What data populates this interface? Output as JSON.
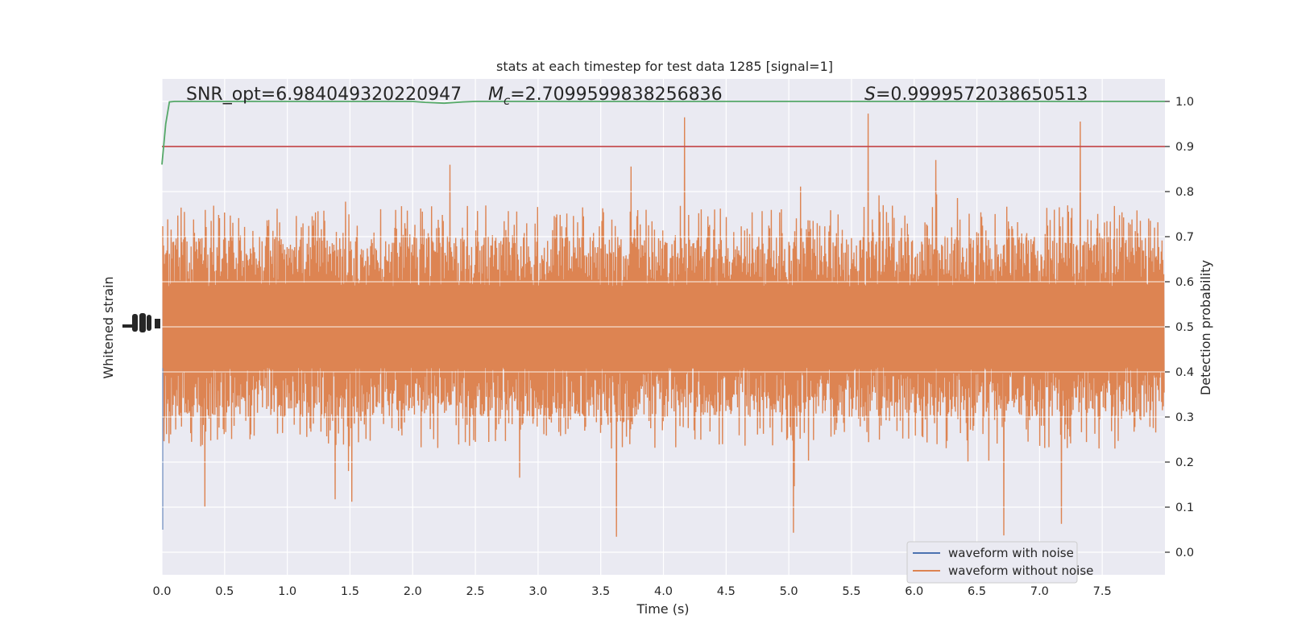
{
  "chart_data": {
    "type": "line",
    "title": "stats at each timestep for test data 1285 [signal=1]",
    "xlabel": "Time (s)",
    "ylabel_left": "Whitened strain",
    "ylabel_right": "Detection probability",
    "xlim": [
      0.0,
      8.0
    ],
    "y_right_lim": [
      -0.05,
      1.05
    ],
    "x_ticks": [
      "0.0",
      "0.5",
      "1.0",
      "1.5",
      "2.0",
      "2.5",
      "3.0",
      "3.5",
      "4.0",
      "4.5",
      "5.0",
      "5.5",
      "6.0",
      "6.5",
      "7.0",
      "7.5"
    ],
    "y_right_ticks": [
      "0.0",
      "0.1",
      "0.2",
      "0.3",
      "0.4",
      "0.5",
      "0.6",
      "0.7",
      "0.8",
      "0.9",
      "1.0"
    ],
    "grid": true,
    "legend_position": "lower-right",
    "annotations": {
      "snr": "SNR_opt=6.984049320220947",
      "mc_symbol": "M",
      "mc_sub": "c",
      "mc_value": "=2.7099599838256836",
      "s_symbol": "S",
      "s_value": "=0.9999572038650513"
    },
    "series": [
      {
        "name": "waveform with noise",
        "color": "#4c72b0"
      },
      {
        "name": "waveform without noise",
        "color": "#dd8452"
      },
      {
        "color": "#55a868",
        "x": [
          0.0,
          0.03,
          0.06,
          0.1,
          0.3,
          2.0,
          2.1,
          2.25,
          2.4,
          2.5,
          3.0,
          8.0
        ],
        "y": [
          0.86,
          0.95,
          0.999,
          1.0,
          1.0,
          1.0,
          0.998,
          0.996,
          0.999,
          1.0,
          1.0,
          1.0
        ]
      },
      {
        "color": "#c44e52",
        "threshold": 0.9
      }
    ],
    "orange_band": {
      "core_low": 0.41,
      "core_high": 0.59,
      "typical_low": 0.3,
      "typical_high": 0.7,
      "max": 0.975,
      "min": 0.0
    },
    "colors": {
      "axes_bg": "#eaeaf2",
      "grid": "#ffffff",
      "noise": "#4c72b0",
      "clean": "#dd8452",
      "prob": "#55a868",
      "threshold": "#c44e52"
    }
  }
}
